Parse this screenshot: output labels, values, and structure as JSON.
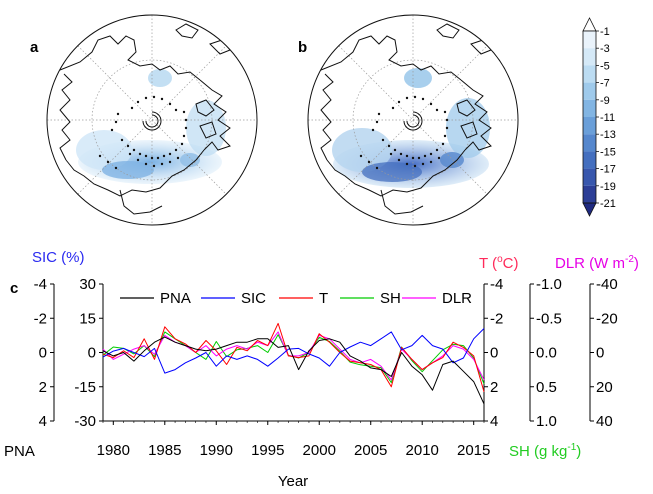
{
  "panels": {
    "a_label": "a",
    "b_label": "b",
    "c_label": "c"
  },
  "colorbar": {
    "ticks": [
      "-1",
      "-3",
      "-5",
      "-7",
      "-9",
      "-11",
      "-13",
      "-15",
      "-17",
      "-19",
      "-21"
    ],
    "colors": [
      "#ffffff",
      "#eaf3fb",
      "#d5e9f7",
      "#bcdcf2",
      "#9fcaeb",
      "#82b5e3",
      "#6a9fd9",
      "#5587cd",
      "#446fbf",
      "#3857ad",
      "#2c3e96",
      "#1f2a80"
    ]
  },
  "axis_titles": {
    "sic": "SIC (%)",
    "t_prefix": "T (",
    "t_sup": "o",
    "t_suffix": "C)",
    "dlr_prefix": "DLR (W m",
    "dlr_sup": "-2",
    "dlr_suffix": ")",
    "pna": "PNA",
    "sh_prefix": "SH (g kg",
    "sh_sup": "-1",
    "sh_suffix": ")",
    "year": "Year"
  },
  "colors": {
    "pna": "#000000",
    "sic": "#0000ff",
    "t": "#ff0000",
    "sh": "#00cc00",
    "dlr": "#ff00ff",
    "sic_title": "#2a2af0",
    "t_title": "#ff2a5a",
    "dlr_title": "#e600e6",
    "sh_title": "#22cc22"
  },
  "chart_data": {
    "type": "line",
    "x": [
      1979,
      1980,
      1981,
      1982,
      1983,
      1984,
      1985,
      1986,
      1987,
      1988,
      1989,
      1990,
      1991,
      1992,
      1993,
      1994,
      1995,
      1996,
      1997,
      1998,
      1999,
      2000,
      2001,
      2002,
      2003,
      2004,
      2005,
      2006,
      2007,
      2008,
      2009,
      2010,
      2011,
      2012,
      2013,
      2014,
      2015,
      2016
    ],
    "x_ticks": [
      "1980",
      "1985",
      "1990",
      "1995",
      "2000",
      "2005",
      "2010",
      "2015"
    ],
    "xlim": [
      1979,
      2016
    ],
    "xlabel": "Year",
    "y_axes": {
      "pna": {
        "label": "PNA",
        "ticks": [
          "-4",
          "-2",
          "0",
          "2",
          "4"
        ],
        "range": [
          -4,
          4
        ],
        "inverted": true
      },
      "sic": {
        "label": "SIC (%)",
        "ticks": [
          "30",
          "15",
          "0",
          "-15",
          "-30"
        ],
        "range": [
          -30,
          30
        ]
      },
      "t": {
        "label": "T (oC)",
        "ticks": [
          "-4",
          "-2",
          "0",
          "2",
          "4"
        ],
        "range": [
          -4,
          4
        ],
        "inverted": true
      },
      "sh": {
        "label": "SH (g kg-1)",
        "ticks": [
          "-1.0",
          "-0.5",
          "0.0",
          "0.5",
          "1.0"
        ],
        "range": [
          -1.0,
          1.0
        ],
        "inverted": true
      },
      "dlr": {
        "label": "DLR (W m-2)",
        "ticks": [
          "-40",
          "-20",
          "0",
          "20",
          "40"
        ],
        "range": [
          -40,
          40
        ],
        "inverted": true
      }
    },
    "legend_position": "top",
    "series": [
      {
        "name": "PNA",
        "key": "pna",
        "values": [
          -0.1,
          0.2,
          0.0,
          0.5,
          -0.1,
          -0.6,
          -0.9,
          -0.6,
          -0.4,
          -0.2,
          -0.1,
          -0.2,
          -0.4,
          -0.6,
          -0.6,
          -0.8,
          -0.8,
          -0.3,
          -0.4,
          1.0,
          -0.1,
          -0.7,
          -0.8,
          -0.6,
          0.2,
          0.5,
          0.9,
          1.0,
          1.4,
          0.0,
          0.8,
          1.3,
          2.2,
          0.7,
          0.5,
          1.1,
          1.7,
          3.0
        ]
      },
      {
        "name": "SIC",
        "key": "sic",
        "values": [
          -2.0,
          0.6,
          1.8,
          0.0,
          -1.8,
          1.8,
          -9.0,
          -7.5,
          -4.5,
          -2.4,
          0.0,
          -6.0,
          -1.5,
          -3.0,
          -1.5,
          -3.0,
          -6.0,
          -2.4,
          1.5,
          1.8,
          -0.6,
          -2.4,
          -6.0,
          0.0,
          2.4,
          4.5,
          3.0,
          6.0,
          9.0,
          1.2,
          3.0,
          7.5,
          3.0,
          1.5,
          -4.5,
          -2.4,
          6.0,
          10.5
        ]
      },
      {
        "name": "T",
        "key": "t",
        "values": [
          0.1,
          0.3,
          -0.1,
          0.3,
          -0.8,
          0.4,
          -1.5,
          -0.8,
          -0.5,
          0.0,
          -0.7,
          -0.1,
          0.7,
          -0.3,
          -0.1,
          -0.7,
          -0.4,
          -1.7,
          0.2,
          0.3,
          0.2,
          -1.1,
          -0.6,
          0.0,
          0.5,
          0.6,
          0.7,
          1.0,
          2.0,
          -0.3,
          0.4,
          1.0,
          0.6,
          0.3,
          -0.6,
          -0.3,
          0.2,
          2.3
        ]
      },
      {
        "name": "SH",
        "key": "sh",
        "values": [
          0.04,
          -0.08,
          -0.06,
          0.02,
          -0.1,
          0.06,
          -0.3,
          -0.2,
          -0.1,
          0.0,
          0.1,
          -0.16,
          0.06,
          -0.04,
          -0.06,
          -0.1,
          0.0,
          -0.26,
          0.04,
          0.08,
          0.0,
          -0.22,
          -0.16,
          -0.02,
          0.14,
          0.18,
          0.2,
          0.22,
          0.44,
          -0.08,
          0.12,
          0.28,
          0.12,
          -0.04,
          -0.12,
          -0.1,
          0.08,
          0.46
        ]
      },
      {
        "name": "DLR",
        "key": "dlr",
        "values": [
          -2.0,
          4.0,
          1.0,
          -2.0,
          -4.0,
          1.0,
          -10.0,
          -6.0,
          -4.0,
          0.0,
          -4.0,
          2.0,
          -2.0,
          -4.0,
          -2.0,
          -6.0,
          -4.0,
          -12.0,
          2.0,
          2.0,
          0.0,
          -10.0,
          -8.0,
          -2.0,
          4.0,
          6.0,
          4.0,
          8.0,
          16.0,
          -2.0,
          4.0,
          10.0,
          6.0,
          2.0,
          -4.0,
          -2.0,
          4.0,
          16.0
        ]
      }
    ]
  }
}
